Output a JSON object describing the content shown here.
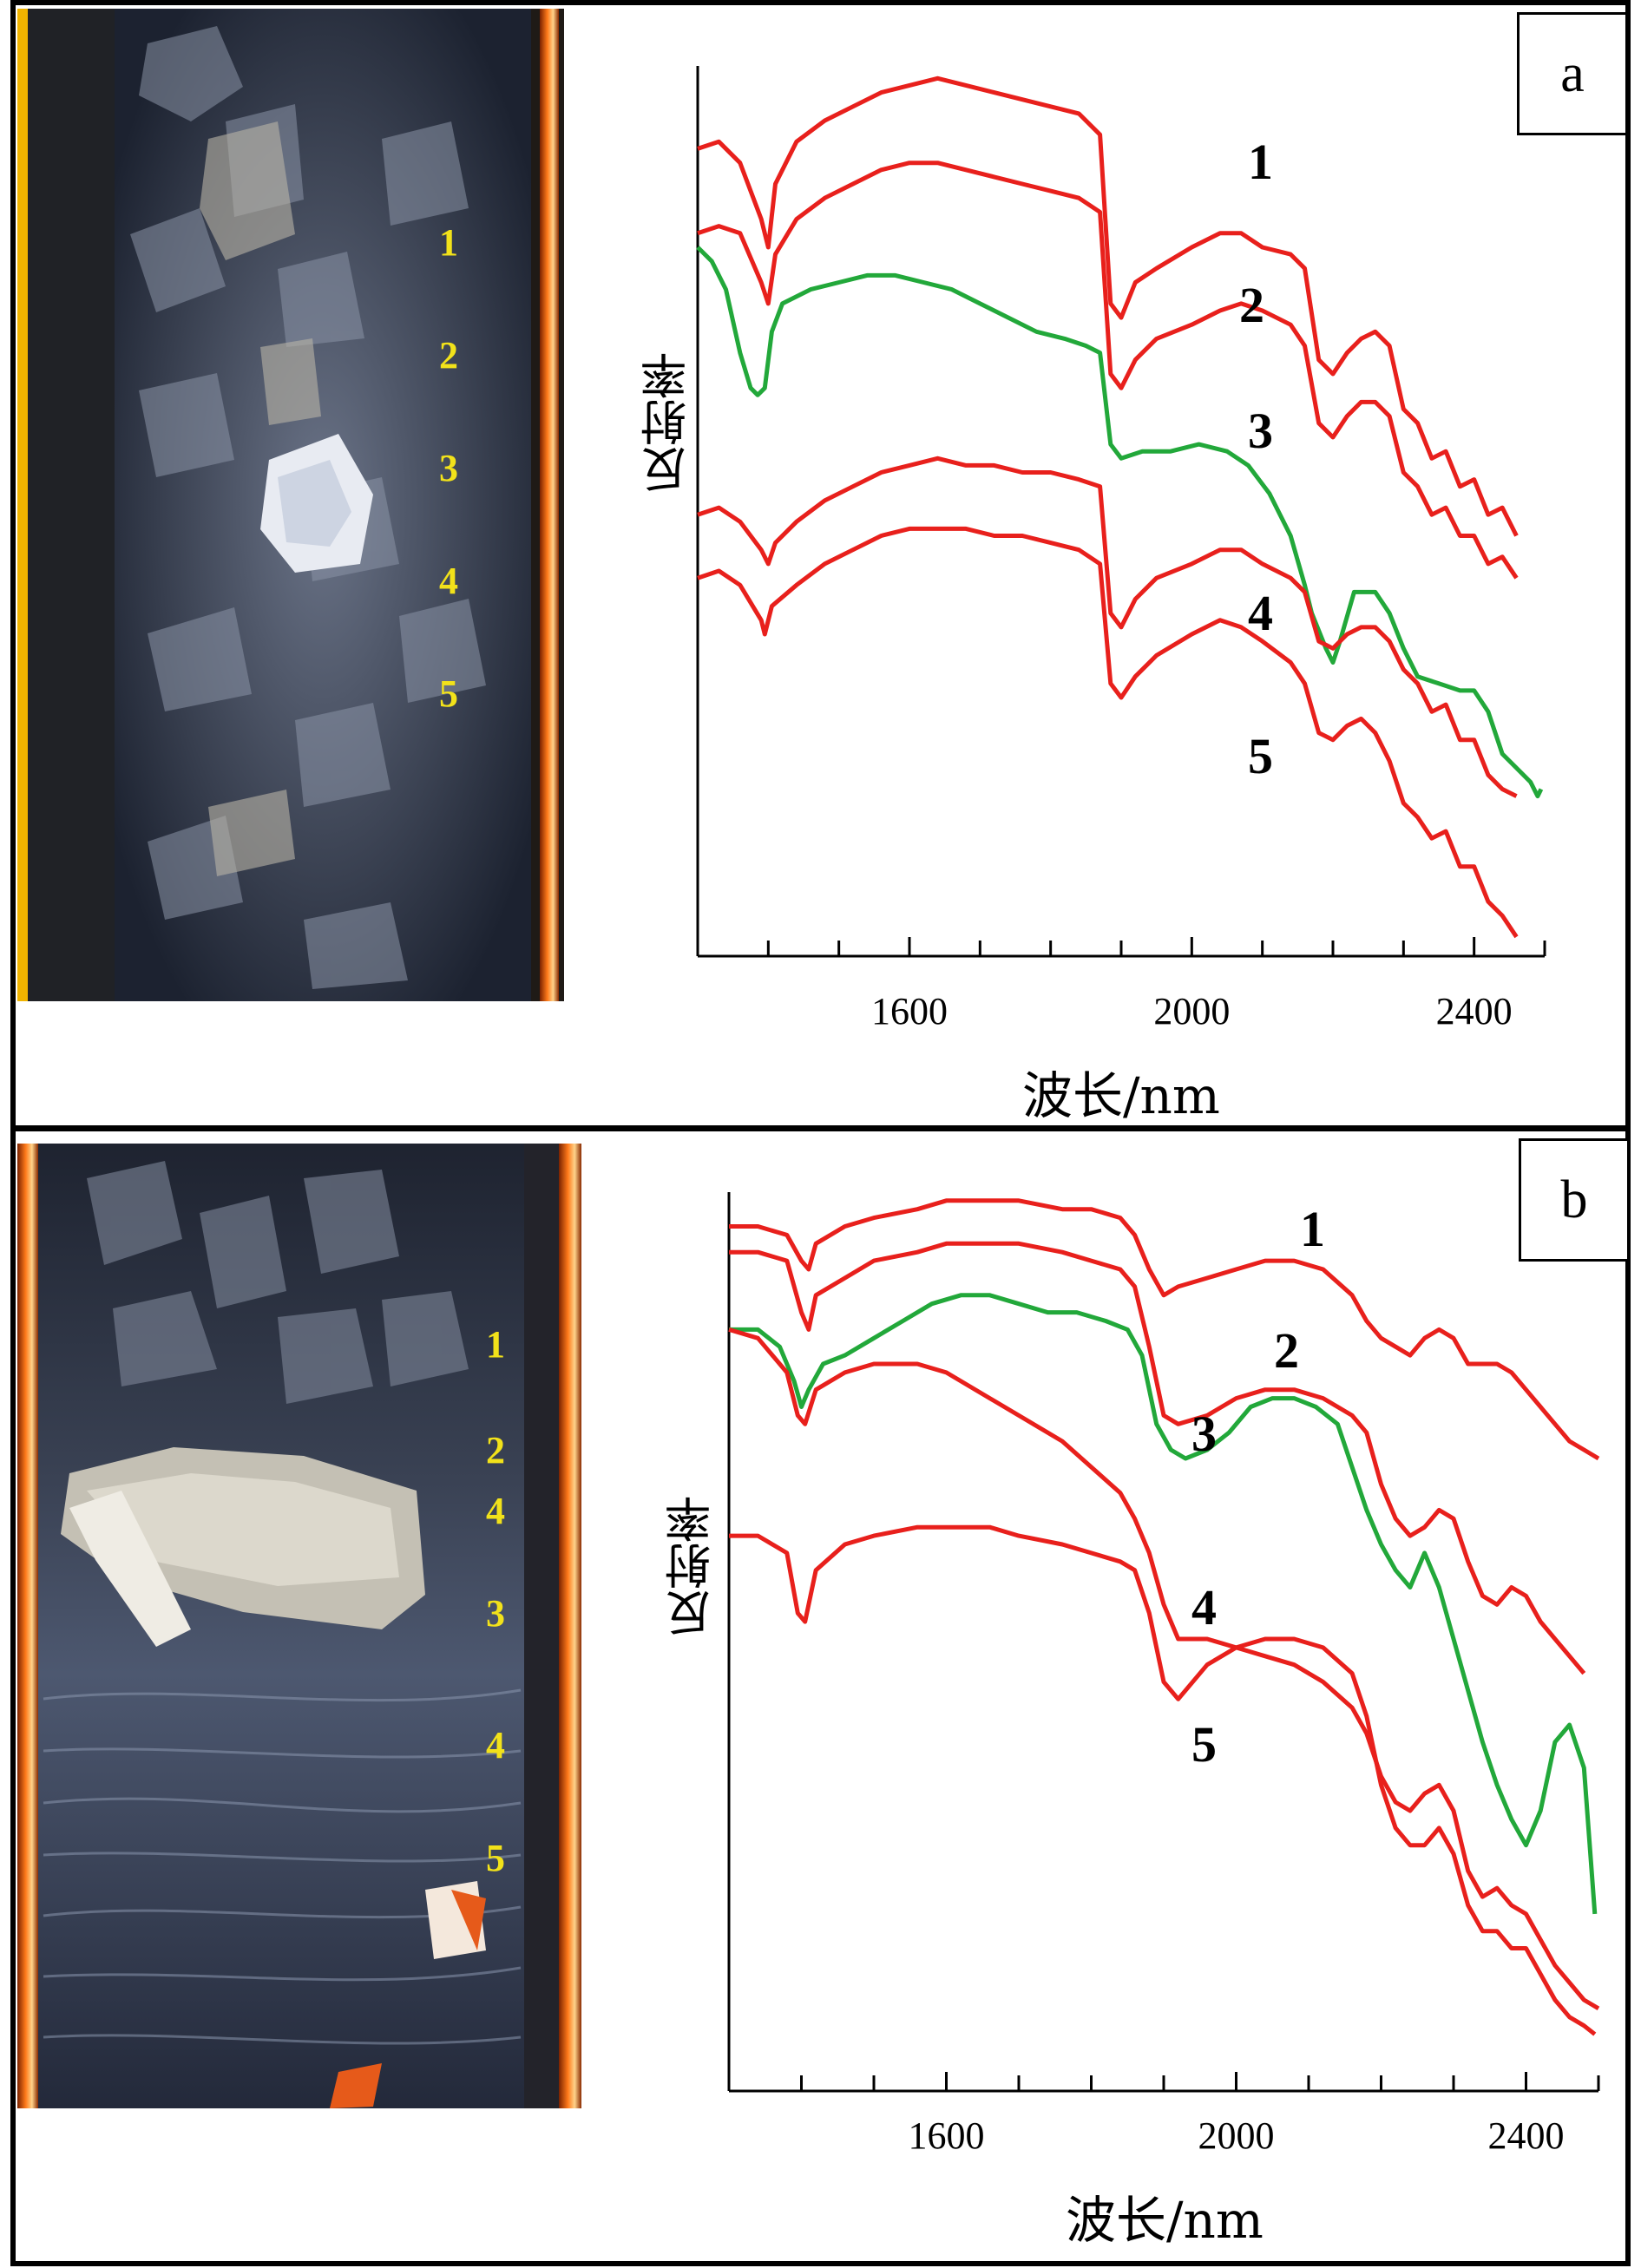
{
  "chart_data": [
    {
      "panel": "a",
      "type": "line",
      "xlabel": "波长/nm",
      "ylabel": "反射率",
      "xlim": [
        1300,
        2500
      ],
      "xticks": [
        1600,
        2000,
        2400
      ],
      "photo_labels": [
        "1",
        "2",
        "3",
        "4",
        "5"
      ],
      "series": [
        {
          "label": "1",
          "color": "#e8201c",
          "x": [
            1300,
            1330,
            1360,
            1390,
            1400,
            1410,
            1440,
            1480,
            1520,
            1560,
            1600,
            1640,
            1680,
            1720,
            1760,
            1800,
            1840,
            1870,
            1885,
            1900,
            1920,
            1950,
            2000,
            2040,
            2070,
            2100,
            2140,
            2160,
            2180,
            2200,
            2220,
            2240,
            2260,
            2280,
            2300,
            2320,
            2340,
            2360,
            2380,
            2400,
            2420,
            2440,
            2460
          ],
          "y": [
            0.92,
            0.93,
            0.9,
            0.82,
            0.78,
            0.87,
            0.93,
            0.96,
            0.98,
            1.0,
            1.01,
            1.02,
            1.01,
            1.0,
            0.99,
            0.98,
            0.97,
            0.94,
            0.7,
            0.68,
            0.73,
            0.75,
            0.78,
            0.8,
            0.8,
            0.78,
            0.77,
            0.75,
            0.62,
            0.6,
            0.63,
            0.65,
            0.66,
            0.64,
            0.55,
            0.53,
            0.48,
            0.49,
            0.44,
            0.45,
            0.4,
            0.41,
            0.37
          ]
        },
        {
          "label": "2",
          "color": "#e8201c",
          "x": [
            1300,
            1330,
            1360,
            1390,
            1400,
            1410,
            1440,
            1480,
            1520,
            1560,
            1600,
            1640,
            1680,
            1720,
            1760,
            1800,
            1840,
            1870,
            1885,
            1900,
            1920,
            1950,
            2000,
            2040,
            2070,
            2100,
            2140,
            2160,
            2180,
            2200,
            2220,
            2240,
            2260,
            2280,
            2300,
            2320,
            2340,
            2360,
            2380,
            2400,
            2420,
            2440,
            2460
          ],
          "y": [
            0.8,
            0.81,
            0.8,
            0.73,
            0.7,
            0.77,
            0.82,
            0.85,
            0.87,
            0.89,
            0.9,
            0.9,
            0.89,
            0.88,
            0.87,
            0.86,
            0.85,
            0.83,
            0.6,
            0.58,
            0.62,
            0.65,
            0.67,
            0.69,
            0.7,
            0.69,
            0.67,
            0.64,
            0.53,
            0.51,
            0.54,
            0.56,
            0.56,
            0.54,
            0.46,
            0.44,
            0.4,
            0.41,
            0.37,
            0.37,
            0.33,
            0.34,
            0.31
          ]
        },
        {
          "label": "3",
          "color": "#22a83a",
          "x": [
            1300,
            1320,
            1340,
            1360,
            1375,
            1385,
            1395,
            1405,
            1420,
            1460,
            1500,
            1540,
            1580,
            1620,
            1660,
            1700,
            1740,
            1780,
            1820,
            1850,
            1870,
            1885,
            1900,
            1930,
            1970,
            2010,
            2050,
            2080,
            2110,
            2140,
            2160,
            2170,
            2190,
            2200,
            2210,
            2230,
            2260,
            2280,
            2300,
            2320,
            2350,
            2380,
            2400,
            2420,
            2440,
            2460,
            2480,
            2490,
            2495
          ],
          "y": [
            0.78,
            0.76,
            0.72,
            0.63,
            0.58,
            0.57,
            0.58,
            0.66,
            0.7,
            0.72,
            0.73,
            0.74,
            0.74,
            0.73,
            0.72,
            0.7,
            0.68,
            0.66,
            0.65,
            0.64,
            0.63,
            0.5,
            0.48,
            0.49,
            0.49,
            0.5,
            0.49,
            0.47,
            0.43,
            0.37,
            0.3,
            0.26,
            0.21,
            0.19,
            0.22,
            0.29,
            0.29,
            0.26,
            0.21,
            0.17,
            0.16,
            0.15,
            0.15,
            0.12,
            0.06,
            0.04,
            0.02,
            0.0,
            0.01
          ]
        },
        {
          "label": "4",
          "color": "#e8201c",
          "x": [
            1300,
            1330,
            1360,
            1390,
            1400,
            1410,
            1440,
            1480,
            1520,
            1560,
            1600,
            1640,
            1680,
            1720,
            1760,
            1800,
            1840,
            1870,
            1885,
            1900,
            1920,
            1950,
            2000,
            2040,
            2070,
            2100,
            2140,
            2160,
            2180,
            2200,
            2220,
            2240,
            2260,
            2280,
            2300,
            2320,
            2340,
            2360,
            2380,
            2400,
            2420,
            2440,
            2460
          ],
          "y": [
            0.4,
            0.41,
            0.39,
            0.35,
            0.33,
            0.36,
            0.39,
            0.42,
            0.44,
            0.46,
            0.47,
            0.48,
            0.47,
            0.47,
            0.46,
            0.46,
            0.45,
            0.44,
            0.26,
            0.24,
            0.28,
            0.31,
            0.33,
            0.35,
            0.35,
            0.33,
            0.31,
            0.29,
            0.22,
            0.21,
            0.23,
            0.24,
            0.24,
            0.22,
            0.18,
            0.16,
            0.12,
            0.13,
            0.08,
            0.08,
            0.03,
            0.01,
            0.0
          ]
        },
        {
          "label": "5",
          "color": "#e8201c",
          "x": [
            1300,
            1330,
            1360,
            1390,
            1395,
            1405,
            1440,
            1480,
            1520,
            1560,
            1600,
            1640,
            1680,
            1720,
            1760,
            1800,
            1840,
            1870,
            1885,
            1900,
            1920,
            1950,
            2000,
            2040,
            2070,
            2100,
            2140,
            2160,
            2180,
            2200,
            2220,
            2240,
            2260,
            2280,
            2300,
            2320,
            2340,
            2360,
            2380,
            2400,
            2420,
            2440,
            2460
          ],
          "y": [
            0.31,
            0.32,
            0.3,
            0.25,
            0.23,
            0.27,
            0.3,
            0.33,
            0.35,
            0.37,
            0.38,
            0.38,
            0.38,
            0.37,
            0.37,
            0.36,
            0.35,
            0.33,
            0.16,
            0.14,
            0.17,
            0.2,
            0.23,
            0.25,
            0.24,
            0.22,
            0.19,
            0.16,
            0.09,
            0.08,
            0.1,
            0.11,
            0.09,
            0.05,
            -0.01,
            -0.03,
            -0.06,
            -0.05,
            -0.1,
            -0.1,
            -0.15,
            -0.17,
            -0.2
          ]
        }
      ]
    },
    {
      "panel": "b",
      "type": "line",
      "xlabel": "波长/nm",
      "ylabel": "反射率",
      "xlim": [
        1300,
        2500
      ],
      "xticks": [
        1600,
        2000,
        2400
      ],
      "photo_labels": [
        "1",
        "2",
        "4",
        "3",
        "4",
        "5"
      ],
      "series": [
        {
          "label": "1",
          "color": "#e8201c",
          "x": [
            1300,
            1340,
            1380,
            1400,
            1410,
            1420,
            1460,
            1500,
            1560,
            1600,
            1660,
            1700,
            1760,
            1800,
            1840,
            1860,
            1880,
            1900,
            1920,
            1960,
            2000,
            2040,
            2080,
            2120,
            2160,
            2180,
            2200,
            2220,
            2240,
            2260,
            2280,
            2300,
            2320,
            2340,
            2360,
            2380,
            2400,
            2420,
            2440,
            2460,
            2480,
            2500
          ],
          "y": [
            1.0,
            1.0,
            0.99,
            0.96,
            0.95,
            0.98,
            1.0,
            1.01,
            1.02,
            1.03,
            1.03,
            1.03,
            1.02,
            1.02,
            1.01,
            0.99,
            0.95,
            0.92,
            0.93,
            0.94,
            0.95,
            0.96,
            0.96,
            0.95,
            0.92,
            0.89,
            0.87,
            0.86,
            0.85,
            0.87,
            0.88,
            0.87,
            0.84,
            0.84,
            0.84,
            0.83,
            0.81,
            0.79,
            0.77,
            0.75,
            0.74,
            0.73
          ]
        },
        {
          "label": "2",
          "color": "#e8201c",
          "x": [
            1300,
            1340,
            1380,
            1400,
            1410,
            1420,
            1460,
            1500,
            1560,
            1600,
            1660,
            1700,
            1760,
            1800,
            1840,
            1860,
            1880,
            1900,
            1920,
            1960,
            2000,
            2040,
            2080,
            2120,
            2160,
            2180,
            2200,
            2220,
            2240,
            2260,
            2280,
            2300,
            2320,
            2340,
            2360,
            2380,
            2400,
            2420,
            2440,
            2460,
            2480
          ],
          "y": [
            0.97,
            0.97,
            0.96,
            0.9,
            0.88,
            0.92,
            0.94,
            0.96,
            0.97,
            0.98,
            0.98,
            0.98,
            0.97,
            0.96,
            0.95,
            0.93,
            0.86,
            0.78,
            0.77,
            0.78,
            0.8,
            0.81,
            0.81,
            0.8,
            0.78,
            0.76,
            0.7,
            0.66,
            0.64,
            0.65,
            0.67,
            0.66,
            0.61,
            0.57,
            0.56,
            0.58,
            0.57,
            0.54,
            0.52,
            0.5,
            0.48
          ]
        },
        {
          "label": "3",
          "color": "#22a83a",
          "x": [
            1300,
            1340,
            1370,
            1390,
            1400,
            1410,
            1430,
            1460,
            1500,
            1540,
            1580,
            1620,
            1660,
            1700,
            1740,
            1780,
            1820,
            1850,
            1870,
            1890,
            1910,
            1930,
            1960,
            1990,
            2020,
            2050,
            2080,
            2110,
            2140,
            2160,
            2180,
            2200,
            2220,
            2240,
            2260,
            2280,
            2300,
            2320,
            2340,
            2360,
            2380,
            2400,
            2420,
            2440,
            2460,
            2480,
            2495
          ],
          "y": [
            0.88,
            0.88,
            0.86,
            0.82,
            0.79,
            0.81,
            0.84,
            0.85,
            0.87,
            0.89,
            0.91,
            0.92,
            0.92,
            0.91,
            0.9,
            0.9,
            0.89,
            0.88,
            0.85,
            0.77,
            0.74,
            0.73,
            0.74,
            0.76,
            0.79,
            0.8,
            0.8,
            0.79,
            0.77,
            0.72,
            0.67,
            0.63,
            0.6,
            0.58,
            0.62,
            0.58,
            0.52,
            0.46,
            0.4,
            0.35,
            0.31,
            0.28,
            0.32,
            0.4,
            0.42,
            0.37,
            0.2
          ]
        },
        {
          "label": "4",
          "color": "#e8201c",
          "x": [
            1300,
            1340,
            1380,
            1395,
            1405,
            1420,
            1460,
            1500,
            1560,
            1600,
            1660,
            1700,
            1760,
            1800,
            1840,
            1860,
            1880,
            1900,
            1920,
            1960,
            2000,
            2040,
            2080,
            2120,
            2160,
            2180,
            2200,
            2220,
            2240,
            2260,
            2280,
            2300,
            2320,
            2340,
            2360,
            2380,
            2400,
            2420,
            2440,
            2460,
            2480,
            2500
          ],
          "y": [
            0.88,
            0.87,
            0.83,
            0.78,
            0.77,
            0.81,
            0.83,
            0.84,
            0.84,
            0.83,
            0.8,
            0.78,
            0.75,
            0.72,
            0.69,
            0.66,
            0.62,
            0.56,
            0.52,
            0.52,
            0.51,
            0.5,
            0.49,
            0.47,
            0.44,
            0.41,
            0.36,
            0.33,
            0.32,
            0.34,
            0.35,
            0.32,
            0.25,
            0.22,
            0.23,
            0.21,
            0.2,
            0.17,
            0.14,
            0.12,
            0.1,
            0.09
          ]
        },
        {
          "label": "5",
          "color": "#e8201c",
          "x": [
            1300,
            1340,
            1380,
            1395,
            1405,
            1420,
            1460,
            1500,
            1560,
            1600,
            1660,
            1700,
            1760,
            1800,
            1840,
            1860,
            1880,
            1900,
            1920,
            1960,
            2000,
            2040,
            2080,
            2120,
            2160,
            2180,
            2200,
            2220,
            2240,
            2260,
            2280,
            2300,
            2320,
            2340,
            2360,
            2380,
            2400,
            2420,
            2440,
            2460,
            2480,
            2495
          ],
          "y": [
            0.64,
            0.64,
            0.62,
            0.55,
            0.54,
            0.6,
            0.63,
            0.64,
            0.65,
            0.65,
            0.65,
            0.64,
            0.63,
            0.62,
            0.61,
            0.6,
            0.55,
            0.47,
            0.45,
            0.49,
            0.51,
            0.52,
            0.52,
            0.51,
            0.48,
            0.43,
            0.35,
            0.3,
            0.28,
            0.28,
            0.3,
            0.27,
            0.21,
            0.18,
            0.18,
            0.16,
            0.16,
            0.13,
            0.1,
            0.08,
            0.07,
            0.06
          ]
        }
      ]
    }
  ]
}
